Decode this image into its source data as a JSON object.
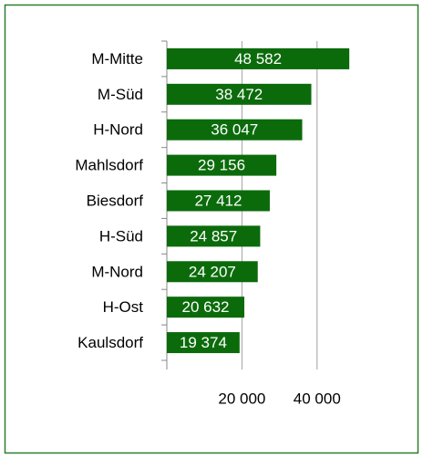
{
  "chart_data": {
    "type": "bar",
    "orientation": "horizontal",
    "categories": [
      "M-Mitte",
      "M-Süd",
      "H-Nord",
      "Mahlsdorf",
      "Biesdorf",
      "H-Süd",
      "M-Nord",
      "H-Ost",
      "Kaulsdorf"
    ],
    "values": [
      48582,
      38472,
      36047,
      29156,
      27412,
      24857,
      24207,
      20632,
      19374
    ],
    "value_labels": [
      "48 582",
      "38 472",
      "36 047",
      "29 156",
      "27 412",
      "24 857",
      "24 207",
      "20 632",
      "19 374"
    ],
    "color": "#0b6b0b",
    "xlim": [
      0,
      50000
    ],
    "xticks": [
      {
        "value": 20000,
        "label": "20 000"
      },
      {
        "value": 40000,
        "label": "40 000"
      }
    ],
    "grid": true
  }
}
